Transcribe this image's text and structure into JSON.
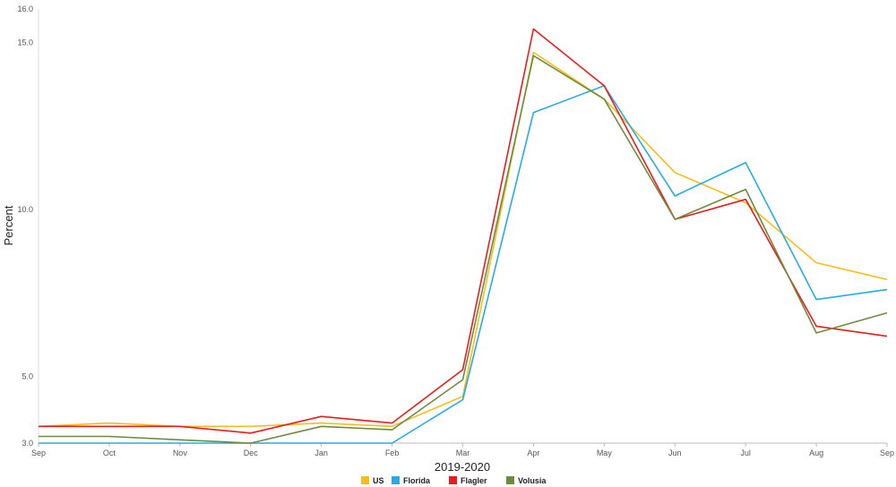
{
  "chart_data": {
    "type": "line",
    "title": "",
    "xlabel": "2019-2020",
    "ylabel": "Percent",
    "ylim": [
      3.0,
      16.0
    ],
    "yticks": [
      3.0,
      5.0,
      10.0,
      15.0,
      16.0
    ],
    "ytick_labels": [
      "3.0",
      "5.0",
      "10.0",
      "15.0",
      "16.0"
    ],
    "grid": false,
    "legend_position": "bottom-center",
    "categories": [
      "Sep",
      "Oct",
      "Nov",
      "Dec",
      "Jan",
      "Feb",
      "Mar",
      "Apr",
      "May",
      "Jun",
      "Jul",
      "Aug",
      "Sep"
    ],
    "series": [
      {
        "name": "US",
        "color": "#F5BD1F",
        "values": [
          3.5,
          3.6,
          3.5,
          3.5,
          3.6,
          3.5,
          4.4,
          14.7,
          13.3,
          11.1,
          10.2,
          8.4,
          7.9
        ]
      },
      {
        "name": "Florida",
        "color": "#29ABE2",
        "values": [
          3.0,
          3.0,
          3.0,
          3.0,
          3.0,
          3.0,
          4.3,
          12.9,
          13.7,
          10.4,
          11.4,
          7.3,
          7.6
        ]
      },
      {
        "name": "Flagler",
        "color": "#E41E1E",
        "values": [
          3.5,
          3.5,
          3.5,
          3.3,
          3.8,
          3.6,
          5.2,
          15.4,
          13.7,
          9.7,
          10.3,
          6.5,
          6.2
        ]
      },
      {
        "name": "Volusia",
        "color": "#6E8B3D",
        "values": [
          3.2,
          3.2,
          3.1,
          3.0,
          3.5,
          3.4,
          4.9,
          14.6,
          13.3,
          9.7,
          10.6,
          6.3,
          6.9
        ]
      }
    ]
  }
}
